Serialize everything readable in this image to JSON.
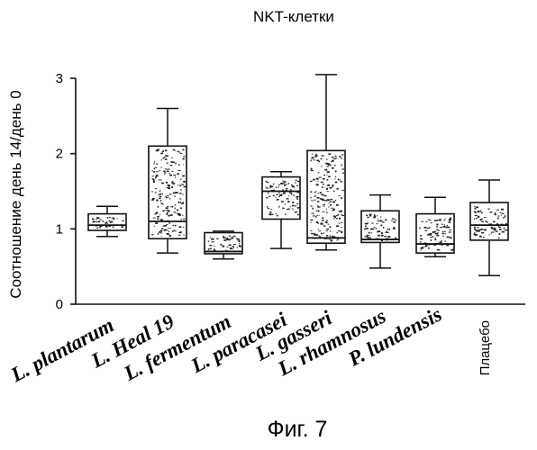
{
  "chart_data": {
    "type": "box",
    "title": "NKT-клетки",
    "ylabel": "Соотношение день 14/день 0",
    "xlabel": "",
    "ylim": [
      0,
      3
    ],
    "yticks": [
      "0",
      "1",
      "2",
      "3"
    ],
    "grid": false,
    "categories": [
      {
        "label": "L. plantarum",
        "italic": true
      },
      {
        "label": "L. Heal 19",
        "italic": true
      },
      {
        "label": "L. fermentum",
        "italic": true
      },
      {
        "label": "L. paracasei",
        "italic": true
      },
      {
        "label": "L. gasseri",
        "italic": true
      },
      {
        "label": "L. rhamnosus",
        "italic": true
      },
      {
        "label": "P. lundensis",
        "italic": true
      },
      {
        "label": "Плацебо",
        "italic": false
      }
    ],
    "boxes": [
      {
        "min": 0.9,
        "q1": 0.98,
        "median": 1.05,
        "q3": 1.2,
        "max": 1.3
      },
      {
        "min": 0.68,
        "q1": 0.87,
        "median": 1.1,
        "q3": 2.1,
        "max": 2.6
      },
      {
        "min": 0.6,
        "q1": 0.67,
        "median": 0.7,
        "q3": 0.95,
        "max": 0.97
      },
      {
        "min": 0.74,
        "q1": 1.13,
        "median": 1.5,
        "q3": 1.69,
        "max": 1.76
      },
      {
        "min": 0.72,
        "q1": 0.81,
        "median": 0.88,
        "q3": 2.04,
        "max": 3.05
      },
      {
        "min": 0.48,
        "q1": 0.82,
        "median": 0.86,
        "q3": 1.24,
        "max": 1.45
      },
      {
        "min": 0.63,
        "q1": 0.68,
        "median": 0.8,
        "q3": 1.2,
        "max": 1.42
      },
      {
        "min": 0.38,
        "q1": 0.85,
        "median": 1.05,
        "q3": 1.35,
        "max": 1.65
      }
    ]
  },
  "caption": "Фиг. 7"
}
